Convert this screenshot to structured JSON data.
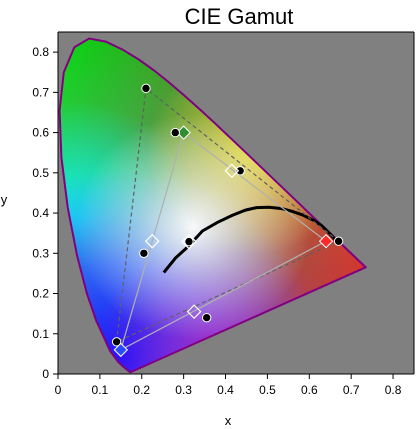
{
  "chart_data": {
    "type": "scatter",
    "title": "CIE Gamut",
    "xlabel": "x",
    "ylabel": "y",
    "xlim": [
      0,
      0.85
    ],
    "ylim": [
      0,
      0.85
    ],
    "x_ticks": [
      "0",
      "0.1",
      "0.2",
      "0.3",
      "0.4",
      "0.5",
      "0.6",
      "0.7",
      "0.8"
    ],
    "y_ticks": [
      "0",
      "0.1",
      "0.2",
      "0.3",
      "0.4",
      "0.5",
      "0.6",
      "0.7",
      "0.8"
    ],
    "background_color": "#808080",
    "locus_color": "#800080",
    "spectral_locus": [
      [
        0.1741,
        0.005
      ],
      [
        0.1738,
        0.0049
      ],
      [
        0.1721,
        0.0048
      ],
      [
        0.1689,
        0.0069
      ],
      [
        0.1644,
        0.0109
      ],
      [
        0.1566,
        0.0177
      ],
      [
        0.144,
        0.0297
      ],
      [
        0.1241,
        0.0578
      ],
      [
        0.0913,
        0.1327
      ],
      [
        0.0687,
        0.2007
      ],
      [
        0.0454,
        0.295
      ],
      [
        0.0235,
        0.4127
      ],
      [
        0.0082,
        0.5384
      ],
      [
        0.0039,
        0.6548
      ],
      [
        0.0139,
        0.7502
      ],
      [
        0.0389,
        0.812
      ],
      [
        0.0743,
        0.8338
      ],
      [
        0.1142,
        0.8262
      ],
      [
        0.1547,
        0.8059
      ],
      [
        0.1929,
        0.7816
      ],
      [
        0.2296,
        0.7543
      ],
      [
        0.2658,
        0.7243
      ],
      [
        0.3016,
        0.6923
      ],
      [
        0.3373,
        0.6589
      ],
      [
        0.3731,
        0.6245
      ],
      [
        0.4087,
        0.5896
      ],
      [
        0.4441,
        0.5547
      ],
      [
        0.4788,
        0.5202
      ],
      [
        0.5125,
        0.4866
      ],
      [
        0.5448,
        0.4544
      ],
      [
        0.5752,
        0.4242
      ],
      [
        0.6029,
        0.3965
      ],
      [
        0.627,
        0.3725
      ],
      [
        0.6482,
        0.3514
      ],
      [
        0.6658,
        0.334
      ],
      [
        0.6801,
        0.3197
      ],
      [
        0.6915,
        0.3083
      ],
      [
        0.7006,
        0.2993
      ],
      [
        0.7079,
        0.292
      ],
      [
        0.714,
        0.2859
      ],
      [
        0.719,
        0.2809
      ],
      [
        0.723,
        0.277
      ],
      [
        0.726,
        0.274
      ],
      [
        0.7283,
        0.2717
      ],
      [
        0.73,
        0.27
      ],
      [
        0.7311,
        0.2689
      ],
      [
        0.732,
        0.268
      ],
      [
        0.7327,
        0.2673
      ],
      [
        0.7334,
        0.2666
      ],
      [
        0.734,
        0.266
      ],
      [
        0.7344,
        0.2656
      ],
      [
        0.7346,
        0.2654
      ],
      [
        0.7347,
        0.2653
      ]
    ],
    "planckian_locus": [
      [
        0.2525,
        0.2522
      ],
      [
        0.2806,
        0.2883
      ],
      [
        0.3101,
        0.3162
      ],
      [
        0.3447,
        0.3553
      ],
      [
        0.3805,
        0.3768
      ],
      [
        0.416,
        0.3941
      ],
      [
        0.4476,
        0.4074
      ],
      [
        0.474,
        0.4136
      ],
      [
        0.504,
        0.4142
      ],
      [
        0.534,
        0.411
      ],
      [
        0.56,
        0.404
      ],
      [
        0.585,
        0.395
      ],
      [
        0.61,
        0.382
      ],
      [
        0.63,
        0.368
      ],
      [
        0.65,
        0.348
      ],
      [
        0.662,
        0.333
      ]
    ],
    "series": [
      {
        "points": [
          [
            0.67,
            0.33
          ],
          [
            0.21,
            0.71
          ],
          [
            0.14,
            0.08
          ]
        ],
        "marker": "circle",
        "line_color": "#606060",
        "line_style": "dashed"
      },
      {
        "points": [
          [
            0.64,
            0.33
          ],
          [
            0.3,
            0.6
          ],
          [
            0.15,
            0.06
          ]
        ],
        "marker": "none",
        "line_color": "#b0b0b0",
        "line_style": "solid"
      },
      {
        "points": [
          [
            0.64,
            0.33
          ],
          [
            0.3,
            0.6
          ],
          [
            0.15,
            0.06
          ]
        ],
        "marker": "none",
        "line_color": "#b0b0b0",
        "line_style": "dotted"
      }
    ],
    "primary_markers": [
      {
        "name": "red",
        "x": 0.64,
        "y": 0.33,
        "fill": "#ff2a2a",
        "shape": "diamond"
      },
      {
        "name": "green",
        "x": 0.3,
        "y": 0.6,
        "fill": "#2f8f2f",
        "shape": "diamond"
      },
      {
        "name": "blue",
        "x": 0.15,
        "y": 0.06,
        "fill": "#2a4bff",
        "shape": "diamond"
      }
    ],
    "white_point_markers": [
      {
        "name": "white-point-1",
        "x": 0.3127,
        "y": 0.329,
        "fill": "#000000",
        "shape": "circle"
      },
      {
        "name": "white-point-2",
        "x": 0.3127,
        "y": 0.329,
        "fill": "none",
        "shape": "diamond"
      }
    ],
    "midpoint_markers": [
      {
        "x": 0.435,
        "y": 0.505,
        "shape": "circle"
      },
      {
        "x": 0.415,
        "y": 0.505,
        "shape": "diamond"
      },
      {
        "x": 0.355,
        "y": 0.14,
        "shape": "circle"
      },
      {
        "x": 0.325,
        "y": 0.155,
        "shape": "diamond"
      },
      {
        "x": 0.205,
        "y": 0.3,
        "shape": "circle"
      },
      {
        "x": 0.225,
        "y": 0.33,
        "shape": "diamond"
      },
      {
        "x": 0.28,
        "y": 0.6,
        "shape": "circle"
      }
    ],
    "grid": false
  }
}
